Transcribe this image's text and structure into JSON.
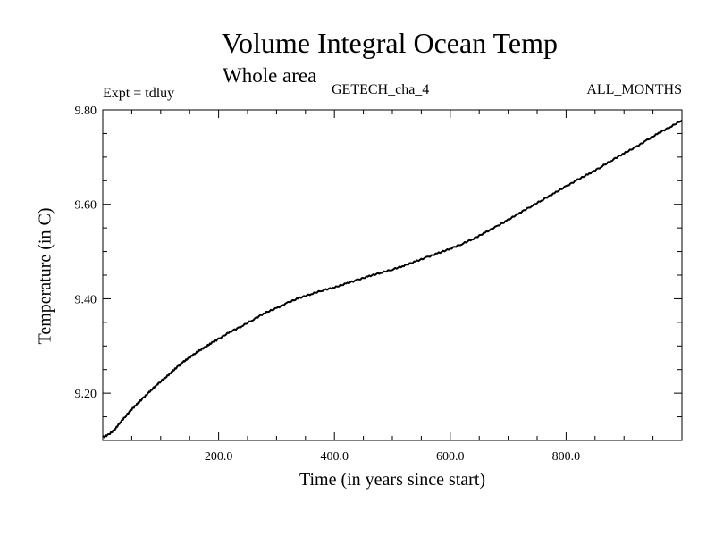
{
  "header": {
    "title": "Volume Integral Ocean Temp",
    "subtitle": "Whole area",
    "experiment": "Expt = tdluy",
    "run_name": "GETECH_cha_4",
    "period": "ALL_MONTHS"
  },
  "chart_data": {
    "type": "line",
    "title": "Volume Integral Ocean Temp",
    "subtitle": "Whole area",
    "xlabel": "Time (in years since start)",
    "ylabel": "Temperature (in C)",
    "xlim": [
      0,
      1000
    ],
    "ylim": [
      9.1,
      9.8
    ],
    "x_ticks": [
      200,
      400,
      600,
      800
    ],
    "x_tick_labels": [
      "200.0",
      "400.0",
      "600.0",
      "800.0"
    ],
    "y_ticks": [
      9.2,
      9.4,
      9.6,
      9.8
    ],
    "y_tick_labels": [
      "9.20",
      "9.40",
      "9.60",
      "9.80"
    ],
    "grid": false,
    "line_color": "#000000",
    "series": [
      {
        "x": [
          0,
          10,
          20,
          30,
          40,
          50,
          60,
          70,
          80,
          90,
          100,
          110,
          120,
          130,
          140,
          150,
          160,
          170,
          180,
          190,
          200,
          220,
          240,
          260,
          280,
          300,
          320,
          340,
          360,
          380,
          400,
          420,
          440,
          460,
          480,
          500,
          520,
          540,
          560,
          580,
          600,
          620,
          640,
          660,
          680,
          700,
          720,
          740,
          760,
          780,
          800,
          820,
          840,
          860,
          880,
          900,
          920,
          940,
          960,
          980,
          1000
        ],
        "y": [
          9.107,
          9.112,
          9.122,
          9.138,
          9.152,
          9.166,
          9.178,
          9.19,
          9.202,
          9.214,
          9.225,
          9.235,
          9.246,
          9.257,
          9.267,
          9.276,
          9.285,
          9.293,
          9.3,
          9.308,
          9.315,
          9.33,
          9.342,
          9.356,
          9.37,
          9.38,
          9.392,
          9.402,
          9.41,
          9.418,
          9.424,
          9.432,
          9.44,
          9.448,
          9.455,
          9.462,
          9.47,
          9.479,
          9.488,
          9.497,
          9.506,
          9.516,
          9.527,
          9.54,
          9.553,
          9.567,
          9.582,
          9.596,
          9.61,
          9.624,
          9.638,
          9.652,
          9.665,
          9.679,
          9.694,
          9.708,
          9.721,
          9.736,
          9.751,
          9.764,
          9.778
        ]
      }
    ]
  }
}
